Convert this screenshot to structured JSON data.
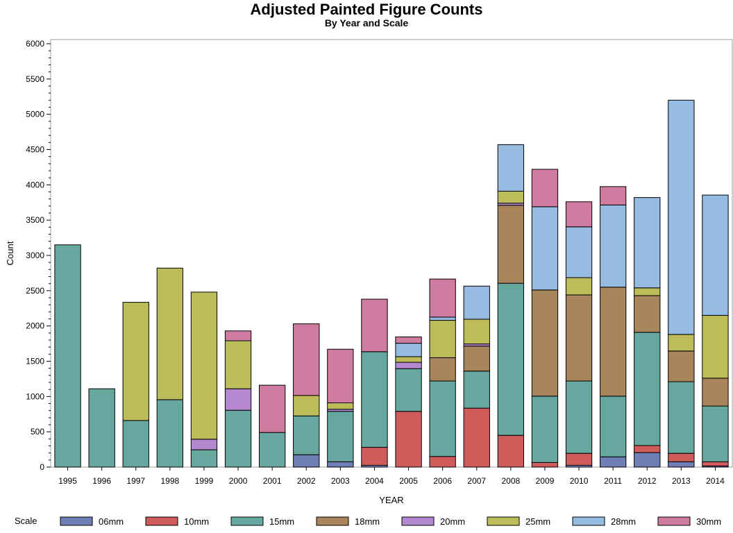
{
  "chart_data": {
    "type": "bar",
    "stacked": true,
    "title": "Adjusted Painted Figure Counts",
    "subtitle": "By Year and Scale",
    "xlabel": "YEAR",
    "ylabel": "Count",
    "ylim": [
      0,
      6000
    ],
    "yticks": [
      0,
      500,
      1000,
      1500,
      2000,
      2500,
      3000,
      3500,
      4000,
      4500,
      5000,
      5500,
      6000
    ],
    "legend_title": "Scale",
    "legend_position": "bottom",
    "categories": [
      "1995",
      "1996",
      "1997",
      "1998",
      "1999",
      "2000",
      "2001",
      "2002",
      "2003",
      "2004",
      "2005",
      "2006",
      "2007",
      "2008",
      "2009",
      "2010",
      "2011",
      "2012",
      "2013",
      "2014"
    ],
    "series": [
      {
        "name": "06mm",
        "color": "#6f7eb5",
        "values": [
          0,
          0,
          0,
          0,
          0,
          0,
          0,
          175,
          75,
          25,
          0,
          0,
          0,
          0,
          0,
          25,
          145,
          205,
          75,
          15
        ]
      },
      {
        "name": "10mm",
        "color": "#d05b5b",
        "values": [
          0,
          0,
          0,
          0,
          0,
          0,
          0,
          0,
          0,
          255,
          790,
          150,
          835,
          450,
          65,
          170,
          0,
          100,
          120,
          60
        ]
      },
      {
        "name": "15mm",
        "color": "#66a8a0",
        "values": [
          3150,
          1110,
          660,
          955,
          245,
          805,
          490,
          550,
          715,
          1355,
          605,
          1070,
          525,
          2155,
          940,
          1025,
          860,
          1605,
          1015,
          790
        ]
      },
      {
        "name": "18mm",
        "color": "#a8855a",
        "values": [
          0,
          0,
          0,
          0,
          0,
          0,
          0,
          0,
          0,
          0,
          0,
          330,
          355,
          1105,
          1505,
          1220,
          1545,
          520,
          435,
          395
        ]
      },
      {
        "name": "20mm",
        "color": "#b388d0",
        "values": [
          0,
          0,
          0,
          0,
          150,
          305,
          0,
          0,
          30,
          0,
          90,
          0,
          30,
          30,
          0,
          0,
          0,
          0,
          0,
          0
        ]
      },
      {
        "name": "25mm",
        "color": "#bcbc5a",
        "values": [
          0,
          0,
          1675,
          1865,
          2085,
          680,
          0,
          290,
          90,
          0,
          80,
          530,
          350,
          170,
          0,
          245,
          0,
          110,
          235,
          890
        ]
      },
      {
        "name": "28mm",
        "color": "#96bce2",
        "values": [
          0,
          0,
          0,
          0,
          0,
          0,
          0,
          0,
          0,
          0,
          190,
          45,
          470,
          660,
          1180,
          720,
          1165,
          1280,
          3320,
          1705
        ]
      },
      {
        "name": "30mm",
        "color": "#d07ca0",
        "values": [
          0,
          0,
          0,
          0,
          0,
          140,
          670,
          1015,
          760,
          745,
          90,
          540,
          0,
          0,
          530,
          355,
          260,
          0,
          0,
          0
        ]
      }
    ]
  }
}
